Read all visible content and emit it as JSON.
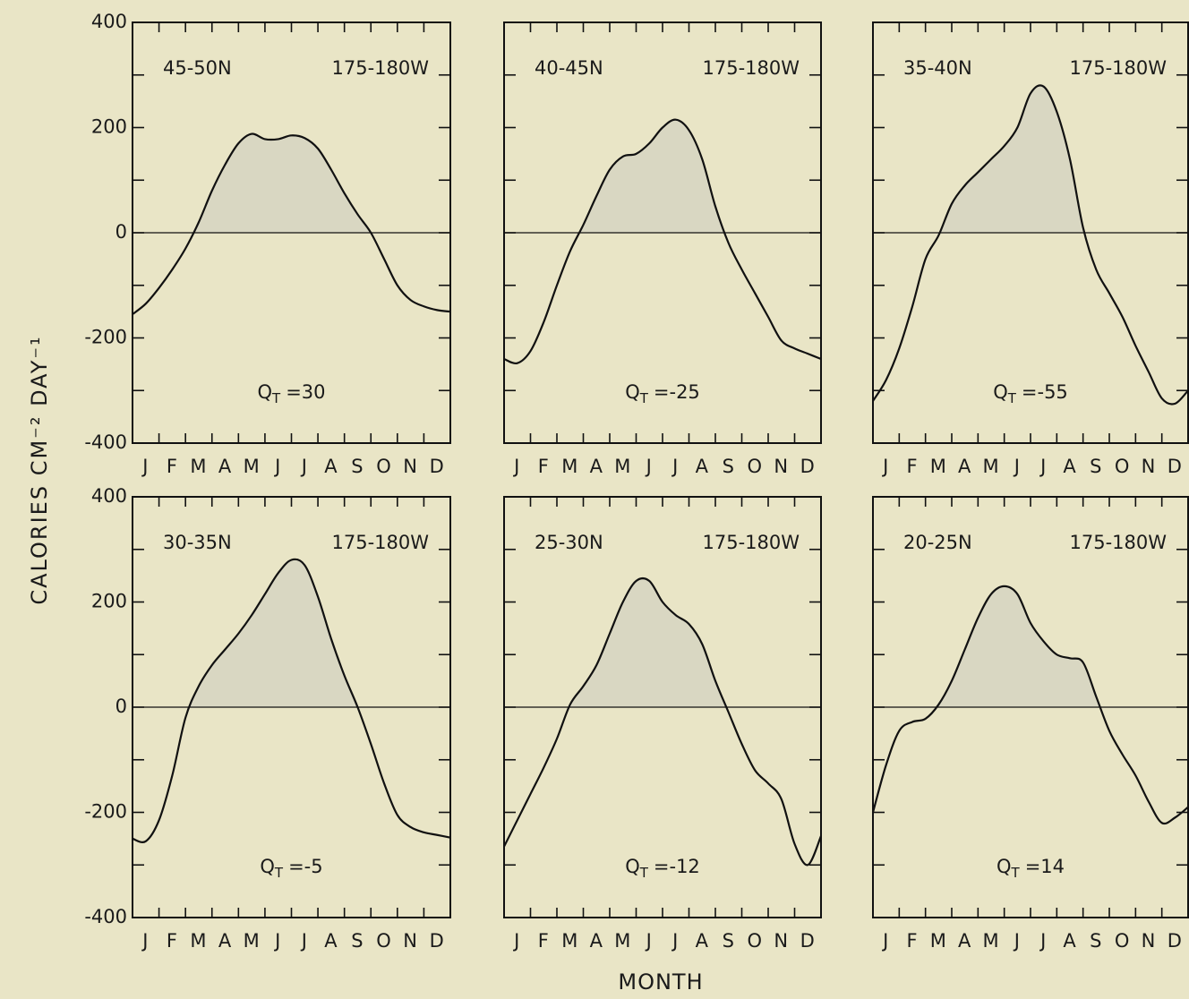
{
  "ylabel": "CALORIES CM⁻² DAY⁻¹",
  "xlabel": "MONTH",
  "chart_data": [
    {
      "type": "line",
      "latitude": "45-50N",
      "longitude": "175-180W",
      "annotation": {
        "symbol": "Q",
        "subscript": "T",
        "label": "=30"
      },
      "categories": [
        null,
        "J",
        null,
        "F",
        null,
        "M",
        null,
        "A",
        null,
        "M",
        null,
        "J",
        null,
        "J",
        null,
        "A",
        null,
        "S",
        null,
        "O",
        null,
        "N",
        null,
        "D",
        null
      ],
      "values": [
        -155,
        -135,
        -105,
        -70,
        -30,
        20,
        80,
        130,
        170,
        188,
        178,
        178,
        185,
        180,
        160,
        120,
        75,
        35,
        0,
        -50,
        -100,
        -128,
        -140,
        -147,
        -150
      ],
      "ylim": [
        -400,
        400
      ],
      "yticks": [
        -400,
        -200,
        0,
        200,
        400
      ],
      "minor_yticks": [
        -300,
        -100,
        100,
        300
      ],
      "show_ytick_labels": true,
      "reference_line": 0,
      "color": "#111111",
      "fill_color": "#d9d7c2"
    },
    {
      "type": "line",
      "latitude": "40-45N",
      "longitude": "175-180W",
      "annotation": {
        "symbol": "Q",
        "subscript": "T",
        "label": "=-25"
      },
      "categories": [
        null,
        "J",
        null,
        "F",
        null,
        "M",
        null,
        "A",
        null,
        "M",
        null,
        "J",
        null,
        "J",
        null,
        "A",
        null,
        "S",
        null,
        "O",
        null,
        "N",
        null,
        "D",
        null
      ],
      "values": [
        -240,
        -248,
        -225,
        -170,
        -100,
        -35,
        15,
        70,
        120,
        145,
        150,
        170,
        200,
        215,
        195,
        140,
        50,
        -20,
        -70,
        -115,
        -160,
        -205,
        -220,
        -230,
        -240
      ],
      "ylim": [
        -400,
        400
      ],
      "yticks": [
        -400,
        -200,
        0,
        200,
        400
      ],
      "minor_yticks": [
        -300,
        -100,
        100,
        300
      ],
      "show_ytick_labels": false,
      "reference_line": 0,
      "color": "#111111",
      "fill_color": "#d9d7c2"
    },
    {
      "type": "line",
      "latitude": "35-40N",
      "longitude": "175-180W",
      "annotation": {
        "symbol": "Q",
        "subscript": "T",
        "label": "=-55"
      },
      "categories": [
        null,
        "J",
        null,
        "F",
        null,
        "M",
        null,
        "A",
        null,
        "M",
        null,
        "J",
        null,
        "J",
        null,
        "A",
        null,
        "S",
        null,
        "O",
        null,
        "N",
        null,
        "D",
        null
      ],
      "values": [
        -320,
        -280,
        -220,
        -140,
        -50,
        -5,
        55,
        90,
        115,
        140,
        165,
        200,
        265,
        278,
        230,
        140,
        10,
        -70,
        -115,
        -160,
        -215,
        -265,
        -315,
        -325,
        -300
      ],
      "ylim": [
        -400,
        400
      ],
      "yticks": [
        -400,
        -200,
        0,
        200,
        400
      ],
      "minor_yticks": [
        -300,
        -100,
        100,
        300
      ],
      "show_ytick_labels": false,
      "reference_line": 0,
      "color": "#111111",
      "fill_color": "#d9d7c2"
    },
    {
      "type": "line",
      "latitude": "30-35N",
      "longitude": "175-180W",
      "annotation": {
        "symbol": "Q",
        "subscript": "T",
        "label": "=-5"
      },
      "categories": [
        null,
        "J",
        null,
        "F",
        null,
        "M",
        null,
        "A",
        null,
        "M",
        null,
        "J",
        null,
        "J",
        null,
        "A",
        null,
        "S",
        null,
        "O",
        null,
        "N",
        null,
        "D",
        null
      ],
      "values": [
        -250,
        -255,
        -215,
        -130,
        -20,
        40,
        80,
        110,
        140,
        175,
        215,
        255,
        280,
        270,
        210,
        130,
        60,
        0,
        -70,
        -145,
        -205,
        -228,
        -238,
        -243,
        -248
      ],
      "ylim": [
        -400,
        400
      ],
      "yticks": [
        -400,
        -200,
        0,
        200,
        400
      ],
      "minor_yticks": [
        -300,
        -100,
        100,
        300
      ],
      "show_ytick_labels": true,
      "reference_line": 0,
      "color": "#111111",
      "fill_color": "#d9d7c2"
    },
    {
      "type": "line",
      "latitude": "25-30N",
      "longitude": "175-180W",
      "annotation": {
        "symbol": "Q",
        "subscript": "T",
        "label": "=-12"
      },
      "categories": [
        null,
        "J",
        null,
        "F",
        null,
        "M",
        null,
        "A",
        null,
        "M",
        null,
        "J",
        null,
        "J",
        null,
        "A",
        null,
        "S",
        null,
        "O",
        null,
        "N",
        null,
        "D",
        null
      ],
      "values": [
        -265,
        -215,
        -165,
        -115,
        -60,
        5,
        40,
        80,
        140,
        200,
        240,
        240,
        200,
        175,
        158,
        120,
        50,
        -10,
        -70,
        -120,
        -145,
        -175,
        -260,
        -300,
        -245
      ],
      "ylim": [
        -400,
        400
      ],
      "yticks": [
        -400,
        -200,
        0,
        200,
        400
      ],
      "minor_yticks": [
        -300,
        -100,
        100,
        300
      ],
      "show_ytick_labels": false,
      "reference_line": 0,
      "color": "#111111",
      "fill_color": "#d9d7c2"
    },
    {
      "type": "line",
      "latitude": "20-25N",
      "longitude": "175-180W",
      "annotation": {
        "symbol": "Q",
        "subscript": "T",
        "label": "=14"
      },
      "categories": [
        null,
        "J",
        null,
        "F",
        null,
        "M",
        null,
        "A",
        null,
        "M",
        null,
        "J",
        null,
        "J",
        null,
        "A",
        null,
        "S",
        null,
        "O",
        null,
        "N",
        null,
        "D",
        null
      ],
      "values": [
        -200,
        -110,
        -45,
        -28,
        -22,
        5,
        50,
        110,
        170,
        215,
        230,
        215,
        160,
        125,
        100,
        93,
        85,
        20,
        -45,
        -90,
        -130,
        -180,
        -220,
        -210,
        -190
      ],
      "ylim": [
        -400,
        400
      ],
      "yticks": [
        -400,
        -200,
        0,
        200,
        400
      ],
      "minor_yticks": [
        -300,
        -100,
        100,
        300
      ],
      "show_ytick_labels": false,
      "reference_line": 0,
      "color": "#111111",
      "fill_color": "#d9d7c2"
    }
  ]
}
